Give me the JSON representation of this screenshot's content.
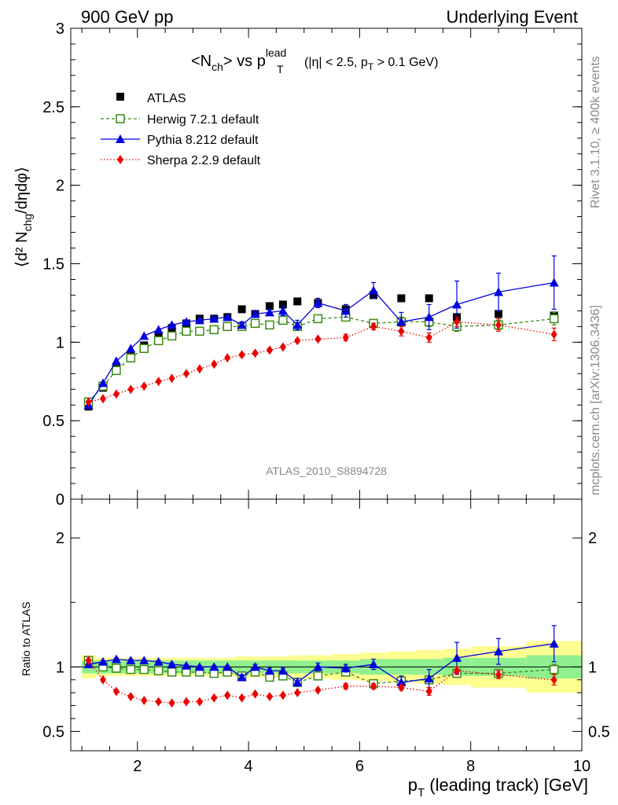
{
  "header": {
    "left": "900 GeV pp",
    "right": "Underlying Event",
    "plot_title": "<N",
    "plot_title_sub": "ch",
    "plot_title_mid": "> vs p",
    "plot_title_sup": "lead",
    "plot_title_sub2": "T",
    "plot_title_cut_a": "(|η| < 2.5, p",
    "plot_title_cut_sub": "T",
    "plot_title_cut_b": " > 0.1 GeV)",
    "side_top": "Rivet 3.1.10, ≥ 400k events",
    "side_bottom": "mcplots.cern.ch [arXiv:1306.3436]",
    "analysis_id": "ATLAS_2010_S8894728"
  },
  "axes": {
    "ylabel_main": "⟨d² N",
    "ylabel_main_sub": "chg",
    "ylabel_main_end": "/dηdφ⟩",
    "ylabel_ratio": "Ratio to ATLAS",
    "xlabel": "p",
    "xlabel_sub": "T",
    "xlabel_end": " (leading track) [GeV]"
  },
  "legend": [
    {
      "label": "ATLAS",
      "color": "#000000",
      "marker": "filled-square"
    },
    {
      "label": "Herwig 7.2.1 default",
      "color": "#3a8a12",
      "marker": "open-square",
      "line": "dashed"
    },
    {
      "label": "Pythia 8.212 default",
      "color": "#0000e0",
      "marker": "filled-triangle",
      "line": "solid"
    },
    {
      "label": "Sherpa 2.2.9 default",
      "color": "#ee0000",
      "marker": "filled-diamond",
      "line": "dotted"
    }
  ],
  "chart_data": [
    {
      "type": "scatter",
      "panel": "main",
      "xlim": [
        0.8,
        10
      ],
      "ylim": [
        0,
        3
      ],
      "x_ticks": [
        2,
        4,
        6,
        8,
        10
      ],
      "y_ticks": [
        "0",
        "0.5",
        "1",
        "1.5",
        "2",
        "2.5",
        "3"
      ],
      "x": [
        1.12,
        1.38,
        1.62,
        1.88,
        2.12,
        2.38,
        2.62,
        2.88,
        3.12,
        3.38,
        3.62,
        3.88,
        4.12,
        4.38,
        4.62,
        4.88,
        5.25,
        5.75,
        6.25,
        6.75,
        7.25,
        7.75,
        8.5,
        9.5
      ],
      "series": [
        {
          "name": "ATLAS",
          "values": [
            0.59,
            0.71,
            0.83,
            0.91,
            0.98,
            1.04,
            1.09,
            1.12,
            1.15,
            1.15,
            1.16,
            1.21,
            1.18,
            1.23,
            1.24,
            1.26,
            1.25,
            1.21,
            1.3,
            1.28,
            1.28,
            1.16,
            1.18,
            1.17
          ],
          "errors": [
            0.01,
            0.01,
            0.01,
            0.01,
            0.01,
            0.01,
            0.01,
            0.01,
            0.01,
            0.01,
            0.01,
            0.01,
            0.01,
            0.01,
            0.01,
            0.01,
            0.02,
            0.02,
            0.02,
            0.02,
            0.02,
            0.02,
            0.02,
            0.02
          ]
        },
        {
          "name": "Herwig 7.2.1 default",
          "values": [
            0.62,
            0.72,
            0.82,
            0.9,
            0.96,
            1.01,
            1.04,
            1.07,
            1.07,
            1.08,
            1.1,
            1.1,
            1.12,
            1.11,
            1.14,
            1.1,
            1.15,
            1.16,
            1.12,
            1.13,
            1.13,
            1.1,
            1.11,
            1.15
          ],
          "errors": [
            0.005,
            0.005,
            0.005,
            0.005,
            0.005,
            0.005,
            0.005,
            0.005,
            0.006,
            0.006,
            0.007,
            0.008,
            0.01,
            0.01,
            0.01,
            0.01,
            0.01,
            0.02,
            0.02,
            0.03,
            0.03,
            0.03,
            0.03,
            0.04
          ]
        },
        {
          "name": "Pythia 8.212 default",
          "values": [
            0.6,
            0.74,
            0.88,
            0.96,
            1.04,
            1.08,
            1.11,
            1.13,
            1.14,
            1.15,
            1.16,
            1.11,
            1.18,
            1.19,
            1.2,
            1.11,
            1.25,
            1.2,
            1.33,
            1.13,
            1.16,
            1.24,
            1.32,
            1.38
          ],
          "errors": [
            0.005,
            0.005,
            0.005,
            0.005,
            0.005,
            0.005,
            0.006,
            0.007,
            0.008,
            0.01,
            0.01,
            0.02,
            0.02,
            0.02,
            0.03,
            0.03,
            0.03,
            0.04,
            0.05,
            0.06,
            0.08,
            0.15,
            0.12,
            0.17
          ]
        },
        {
          "name": "Sherpa 2.2.9 default",
          "values": [
            0.62,
            0.64,
            0.67,
            0.7,
            0.72,
            0.75,
            0.77,
            0.8,
            0.83,
            0.86,
            0.9,
            0.92,
            0.93,
            0.95,
            0.97,
            1.01,
            1.02,
            1.03,
            1.1,
            1.07,
            1.03,
            1.13,
            1.11,
            1.05
          ],
          "errors": [
            0.005,
            0.005,
            0.005,
            0.005,
            0.005,
            0.005,
            0.005,
            0.006,
            0.007,
            0.008,
            0.008,
            0.01,
            0.01,
            0.01,
            0.01,
            0.01,
            0.01,
            0.02,
            0.02,
            0.03,
            0.03,
            0.03,
            0.04,
            0.04
          ]
        }
      ]
    },
    {
      "type": "scatter",
      "panel": "ratio",
      "xlim": [
        0.8,
        10
      ],
      "ylim": [
        0.35,
        2.3
      ],
      "x_ticks": [
        2,
        4,
        6,
        8,
        10
      ],
      "y_ticks": [
        "0.5",
        "1",
        "2"
      ],
      "bin_edges": [
        1.0,
        1.25,
        1.5,
        1.75,
        2.0,
        2.25,
        2.5,
        2.75,
        3.0,
        3.25,
        3.5,
        3.75,
        4.0,
        4.25,
        4.5,
        4.75,
        5.0,
        5.5,
        6.0,
        6.5,
        7.0,
        7.5,
        8.0,
        9.0,
        10.0
      ],
      "band_stat": [
        0.05,
        0.05,
        0.05,
        0.05,
        0.05,
        0.05,
        0.05,
        0.05,
        0.05,
        0.05,
        0.05,
        0.05,
        0.05,
        0.05,
        0.05,
        0.05,
        0.05,
        0.05,
        0.06,
        0.06,
        0.06,
        0.07,
        0.07,
        0.09
      ],
      "band_total": [
        0.09,
        0.07,
        0.07,
        0.07,
        0.07,
        0.07,
        0.07,
        0.07,
        0.07,
        0.07,
        0.07,
        0.08,
        0.08,
        0.08,
        0.08,
        0.09,
        0.09,
        0.1,
        0.11,
        0.12,
        0.13,
        0.14,
        0.16,
        0.2
      ],
      "band_stat_color": "#90f090",
      "band_total_color": "#fdfd90",
      "x": [
        1.12,
        1.38,
        1.62,
        1.88,
        2.12,
        2.38,
        2.62,
        2.88,
        3.12,
        3.38,
        3.62,
        3.88,
        4.12,
        4.38,
        4.62,
        4.88,
        5.25,
        5.75,
        6.25,
        6.75,
        7.25,
        7.75,
        8.5,
        9.5
      ],
      "series": [
        {
          "name": "Herwig 7.2.1 default",
          "values": [
            1.05,
            1.0,
            0.99,
            0.98,
            0.98,
            0.97,
            0.96,
            0.96,
            0.96,
            0.95,
            0.96,
            0.93,
            0.96,
            0.92,
            0.93,
            0.88,
            0.93,
            0.96,
            0.87,
            0.89,
            0.9,
            0.95,
            0.95,
            0.98
          ],
          "errors": [
            0.01,
            0.01,
            0.01,
            0.01,
            0.01,
            0.01,
            0.01,
            0.01,
            0.01,
            0.01,
            0.01,
            0.01,
            0.01,
            0.01,
            0.01,
            0.01,
            0.01,
            0.02,
            0.02,
            0.03,
            0.03,
            0.03,
            0.03,
            0.04
          ]
        },
        {
          "name": "Pythia 8.212 default",
          "values": [
            1.02,
            1.04,
            1.06,
            1.05,
            1.05,
            1.04,
            1.02,
            1.01,
            1.0,
            1.0,
            1.0,
            0.92,
            1.0,
            0.97,
            0.97,
            0.88,
            1.0,
            0.99,
            1.02,
            0.88,
            0.91,
            1.07,
            1.12,
            1.18
          ],
          "errors": [
            0.01,
            0.01,
            0.01,
            0.01,
            0.01,
            0.01,
            0.01,
            0.01,
            0.01,
            0.01,
            0.01,
            0.02,
            0.02,
            0.02,
            0.02,
            0.03,
            0.03,
            0.03,
            0.04,
            0.05,
            0.07,
            0.12,
            0.1,
            0.14
          ]
        },
        {
          "name": "Sherpa 2.2.9 default",
          "values": [
            1.05,
            0.9,
            0.81,
            0.77,
            0.74,
            0.73,
            0.72,
            0.73,
            0.73,
            0.76,
            0.78,
            0.76,
            0.79,
            0.77,
            0.78,
            0.8,
            0.82,
            0.85,
            0.85,
            0.84,
            0.81,
            0.97,
            0.94,
            0.9
          ],
          "errors": [
            0.01,
            0.01,
            0.01,
            0.01,
            0.01,
            0.01,
            0.01,
            0.01,
            0.01,
            0.01,
            0.01,
            0.01,
            0.01,
            0.01,
            0.01,
            0.01,
            0.01,
            0.02,
            0.02,
            0.02,
            0.03,
            0.03,
            0.03,
            0.04
          ]
        }
      ]
    }
  ]
}
